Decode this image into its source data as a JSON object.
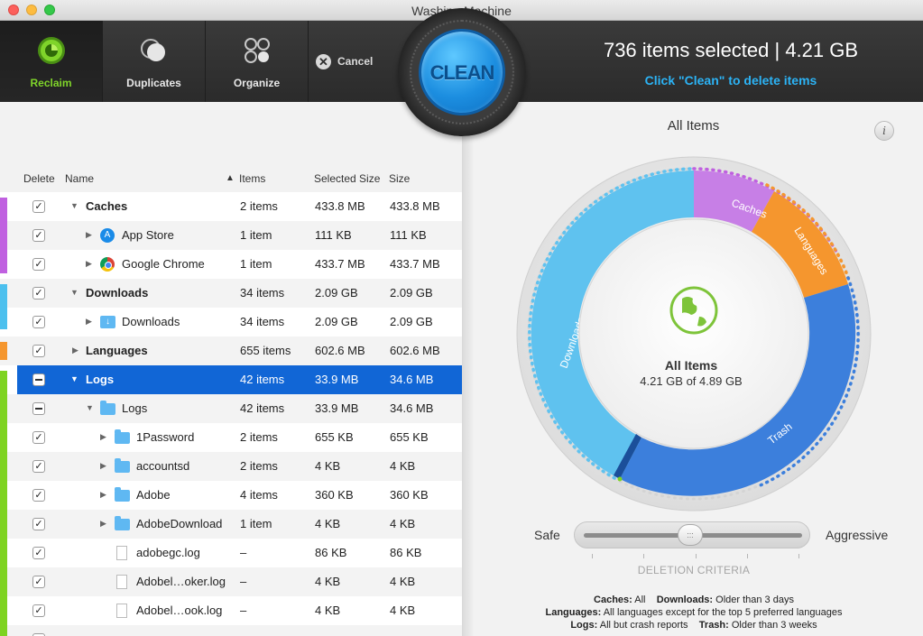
{
  "window": {
    "title": "Washing Machine"
  },
  "toolbar": {
    "tabs": [
      {
        "label": "Reclaim",
        "icon": "reclaim-icon",
        "active": true
      },
      {
        "label": "Duplicates",
        "icon": "duplicates-icon",
        "active": false
      },
      {
        "label": "Organize",
        "icon": "organize-icon",
        "active": false
      }
    ],
    "cancel_label": "Cancel",
    "clean_label": "CLEAN",
    "summary": "736 items selected | 4.21 GB",
    "hint": "Click \"Clean\" to delete items"
  },
  "table": {
    "headers": {
      "delete": "Delete",
      "name": "Name",
      "items": "Items",
      "selected_size": "Selected Size",
      "size": "Size"
    },
    "rows": [
      {
        "name": "Caches",
        "items": "2 items",
        "selected": "433.8 MB",
        "size": "433.8 MB"
      },
      {
        "name": "App Store",
        "items": "1 item",
        "selected": "111 KB",
        "size": "111 KB"
      },
      {
        "name": "Google Chrome",
        "items": "1 item",
        "selected": "433.7 MB",
        "size": "433.7 MB"
      },
      {
        "name": "Downloads",
        "items": "34 items",
        "selected": "2.09 GB",
        "size": "2.09 GB"
      },
      {
        "name": "Downloads",
        "items": "34 items",
        "selected": "2.09 GB",
        "size": "2.09 GB"
      },
      {
        "name": "Languages",
        "items": "655 items",
        "selected": "602.6 MB",
        "size": "602.6 MB"
      },
      {
        "name": "Logs",
        "items": "42 items",
        "selected": "33.9 MB",
        "size": "34.6 MB"
      },
      {
        "name": "Logs",
        "items": "42 items",
        "selected": "33.9 MB",
        "size": "34.6 MB"
      },
      {
        "name": "1Password",
        "items": "2 items",
        "selected": "655 KB",
        "size": "655 KB"
      },
      {
        "name": "accountsd",
        "items": "2 items",
        "selected": "4 KB",
        "size": "4 KB"
      },
      {
        "name": "Adobe",
        "items": "4 items",
        "selected": "360 KB",
        "size": "360 KB"
      },
      {
        "name": "AdobeDownload",
        "items": "1 item",
        "selected": "4 KB",
        "size": "4 KB"
      },
      {
        "name": "adobegc.log",
        "items": "–",
        "selected": "86 KB",
        "size": "86 KB"
      },
      {
        "name": "Adobel…oker.log",
        "items": "–",
        "selected": "4 KB",
        "size": "4 KB"
      },
      {
        "name": "Adobel…ook.log",
        "items": "–",
        "selected": "4 KB",
        "size": "4 KB"
      }
    ]
  },
  "chart": {
    "title": "All Items",
    "center_title": "All Items",
    "center_sub": "4.21 GB of 4.89 GB",
    "segments": [
      {
        "label": "Caches",
        "color": "#c77fe6"
      },
      {
        "label": "Languages",
        "color": "#f5962e"
      },
      {
        "label": "Trash",
        "color": "#3c7fdc"
      },
      {
        "label": "Downloads",
        "color": "#5fc2ef"
      }
    ]
  },
  "slider": {
    "left_label": "Safe",
    "right_label": "Aggressive",
    "value_percent": 47
  },
  "criteria": {
    "title": "DELETION CRITERIA",
    "line1_k1": "Caches:",
    "line1_v1": "All",
    "line1_k2": "Downloads:",
    "line1_v2": "Older than 3 days",
    "line2_k1": "Languages:",
    "line2_v1": "All languages except for the top 5 preferred languages",
    "line3_k1": "Logs:",
    "line3_v1": "All but crash reports",
    "line3_k2": "Trash:",
    "line3_v2": "Older than 3 weeks"
  },
  "colors": {
    "accent_green": "#7fd42a",
    "selection_blue": "#1166d6",
    "hint_blue": "#2cb3f5"
  }
}
